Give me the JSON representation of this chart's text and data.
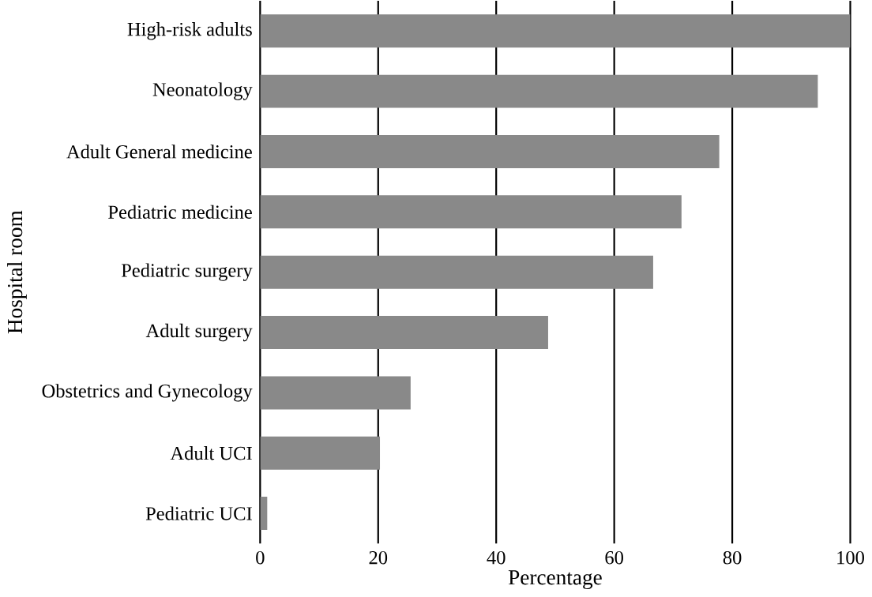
{
  "chart_data": {
    "type": "bar",
    "orientation": "horizontal",
    "xlabel": "Percentage",
    "ylabel": "Hospital room",
    "categories": [
      "High-risk adults",
      "Neonatology",
      "Adult General medicine",
      "Pediatric medicine",
      "Pediatric surgery",
      "Adult surgery",
      "Obstetrics and Gynecology",
      "Adult UCI",
      "Pediatric UCI"
    ],
    "values": [
      100,
      94.5,
      77.8,
      71.4,
      66.6,
      48.8,
      25.5,
      20.3,
      1.2
    ],
    "color": "#898989",
    "xlim": [
      0,
      100
    ],
    "xticks": [
      0,
      20,
      40,
      60,
      80,
      100
    ],
    "grid": "x"
  }
}
